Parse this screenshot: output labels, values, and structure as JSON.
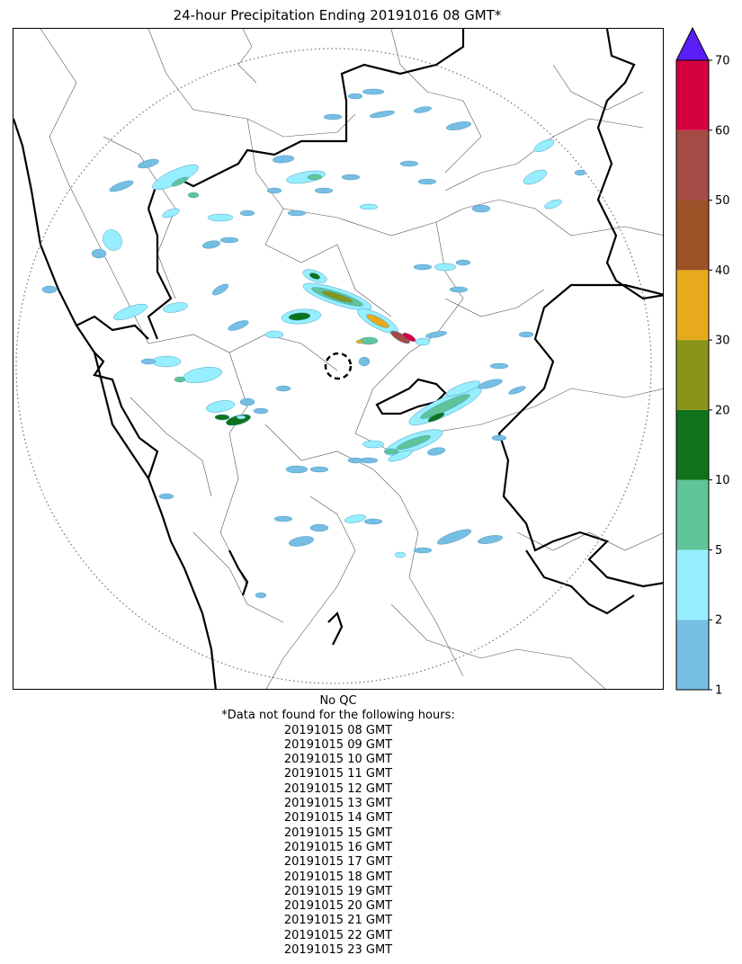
{
  "title": "24-hour Precipitation Ending 20191016 08 GMT*",
  "colorbar": {
    "ticks": [
      1,
      2,
      5,
      10,
      20,
      30,
      40,
      50,
      60,
      70
    ],
    "colors": [
      "#76bee3",
      "#96eefe",
      "#5fc49a",
      "#0f731c",
      "#8a9418",
      "#e6aa1c",
      "#9d5127",
      "#a64a45",
      "#d5003f"
    ],
    "extend_color": "#5a1ef7"
  },
  "notes": {
    "qc": "No QC",
    "missing_header": "*Data not found for the following hours:",
    "missing_hours": [
      "20191015 08 GMT",
      "20191015 09 GMT",
      "20191015 10 GMT",
      "20191015 11 GMT",
      "20191015 12 GMT",
      "20191015 13 GMT",
      "20191015 14 GMT",
      "20191015 15 GMT",
      "20191015 16 GMT",
      "20191015 17 GMT",
      "20191015 18 GMT",
      "20191015 19 GMT",
      "20191015 20 GMT",
      "20191015 21 GMT",
      "20191015 22 GMT",
      "20191015 23 GMT"
    ]
  }
}
